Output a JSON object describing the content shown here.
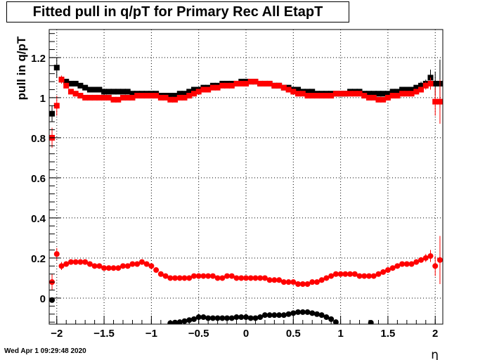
{
  "chart_data": {
    "type": "scatter",
    "title": "Fitted pull in q/pT for Primary Rec All EtapT",
    "xlabel": "η",
    "ylabel": "pull in q/pT",
    "xlim": [
      -2.08,
      2.08
    ],
    "ylim": [
      -0.13,
      1.34
    ],
    "x_ticks": [
      -2,
      -1.5,
      -1,
      -0.5,
      0,
      0.5,
      1,
      1.5,
      2
    ],
    "x_tick_labels": [
      "−2",
      "−1.5",
      "−1",
      "−0.5",
      "0",
      "0.5",
      "1",
      "1.5",
      "2"
    ],
    "y_ticks": [
      0,
      0.2,
      0.4,
      0.6,
      0.8,
      1,
      1.2
    ],
    "y_tick_labels": [
      "0",
      "0.2",
      "0.4",
      "0.6",
      "0.8",
      "1",
      "1.2"
    ],
    "grid": true,
    "series": [
      {
        "marker": "square",
        "color": "#000000",
        "x": [
          -2.05,
          -2.0,
          -1.95,
          -1.9,
          -1.85,
          -1.8,
          -1.75,
          -1.7,
          -1.65,
          -1.6,
          -1.55,
          -1.5,
          -1.45,
          -1.4,
          -1.35,
          -1.3,
          -1.25,
          -1.2,
          -1.15,
          -1.1,
          -1.05,
          -1.0,
          -0.95,
          -0.9,
          -0.85,
          -0.8,
          -0.75,
          -0.7,
          -0.65,
          -0.6,
          -0.55,
          -0.5,
          -0.45,
          -0.4,
          -0.35,
          -0.3,
          -0.25,
          -0.2,
          -0.15,
          -0.1,
          -0.05,
          0.0,
          0.05,
          0.1,
          0.15,
          0.2,
          0.25,
          0.3,
          0.35,
          0.4,
          0.45,
          0.5,
          0.55,
          0.6,
          0.65,
          0.7,
          0.75,
          0.8,
          0.85,
          0.9,
          0.95,
          1.0,
          1.05,
          1.1,
          1.15,
          1.2,
          1.25,
          1.3,
          1.35,
          1.4,
          1.45,
          1.5,
          1.55,
          1.6,
          1.65,
          1.7,
          1.75,
          1.8,
          1.85,
          1.9,
          1.95,
          2.0,
          2.05
        ],
        "y": [
          0.92,
          1.15,
          1.09,
          1.08,
          1.07,
          1.07,
          1.06,
          1.05,
          1.04,
          1.04,
          1.04,
          1.03,
          1.03,
          1.03,
          1.03,
          1.03,
          1.03,
          1.02,
          1.02,
          1.02,
          1.02,
          1.02,
          1.02,
          1.01,
          1.01,
          1.01,
          1.01,
          1.02,
          1.02,
          1.03,
          1.04,
          1.04,
          1.05,
          1.05,
          1.06,
          1.06,
          1.07,
          1.07,
          1.07,
          1.07,
          1.08,
          1.08,
          1.08,
          1.08,
          1.07,
          1.07,
          1.07,
          1.06,
          1.06,
          1.05,
          1.05,
          1.04,
          1.04,
          1.03,
          1.03,
          1.03,
          1.02,
          1.02,
          1.02,
          1.02,
          1.02,
          1.02,
          1.02,
          1.03,
          1.03,
          1.03,
          1.02,
          1.02,
          1.02,
          1.02,
          1.02,
          1.02,
          1.03,
          1.03,
          1.04,
          1.04,
          1.04,
          1.05,
          1.06,
          1.07,
          1.1,
          1.07,
          1.07
        ],
        "yerr": [
          0.04,
          0.05,
          0.02,
          0.01,
          0.01,
          0.01,
          0.01,
          0.01,
          0.01,
          0.01,
          0.01,
          0.01,
          0.01,
          0.01,
          0.01,
          0.01,
          0.01,
          0.01,
          0.01,
          0.01,
          0.01,
          0.01,
          0.01,
          0.01,
          0.01,
          0.01,
          0.01,
          0.01,
          0.01,
          0.01,
          0.01,
          0.01,
          0.01,
          0.01,
          0.01,
          0.01,
          0.01,
          0.01,
          0.01,
          0.01,
          0.01,
          0.01,
          0.01,
          0.01,
          0.01,
          0.01,
          0.01,
          0.01,
          0.01,
          0.01,
          0.01,
          0.01,
          0.01,
          0.01,
          0.01,
          0.01,
          0.01,
          0.01,
          0.01,
          0.01,
          0.01,
          0.01,
          0.01,
          0.01,
          0.01,
          0.01,
          0.01,
          0.01,
          0.01,
          0.01,
          0.01,
          0.01,
          0.01,
          0.01,
          0.01,
          0.01,
          0.01,
          0.01,
          0.02,
          0.02,
          0.04,
          0.06,
          0.12
        ]
      },
      {
        "marker": "square",
        "color": "#ff0000",
        "x": [
          -2.05,
          -2.0,
          -1.95,
          -1.9,
          -1.85,
          -1.8,
          -1.75,
          -1.7,
          -1.65,
          -1.6,
          -1.55,
          -1.5,
          -1.45,
          -1.4,
          -1.35,
          -1.3,
          -1.25,
          -1.2,
          -1.15,
          -1.1,
          -1.05,
          -1.0,
          -0.95,
          -0.9,
          -0.85,
          -0.8,
          -0.75,
          -0.7,
          -0.65,
          -0.6,
          -0.55,
          -0.5,
          -0.45,
          -0.4,
          -0.35,
          -0.3,
          -0.25,
          -0.2,
          -0.15,
          -0.1,
          -0.05,
          0.0,
          0.05,
          0.1,
          0.15,
          0.2,
          0.25,
          0.3,
          0.35,
          0.4,
          0.45,
          0.5,
          0.55,
          0.6,
          0.65,
          0.7,
          0.75,
          0.8,
          0.85,
          0.9,
          0.95,
          1.0,
          1.05,
          1.1,
          1.15,
          1.2,
          1.25,
          1.3,
          1.35,
          1.4,
          1.45,
          1.5,
          1.55,
          1.6,
          1.65,
          1.7,
          1.75,
          1.8,
          1.85,
          1.9,
          1.95,
          2.0,
          2.05
        ],
        "y": [
          0.8,
          0.96,
          1.09,
          1.06,
          1.03,
          1.02,
          1.01,
          1.0,
          1.0,
          1.0,
          1.0,
          1.0,
          1.0,
          0.99,
          0.99,
          1.0,
          1.0,
          1.0,
          1.01,
          1.01,
          1.01,
          1.01,
          1.01,
          1.0,
          1.0,
          0.99,
          0.99,
          1.0,
          1.0,
          1.01,
          1.02,
          1.03,
          1.04,
          1.04,
          1.05,
          1.05,
          1.06,
          1.06,
          1.06,
          1.07,
          1.07,
          1.07,
          1.08,
          1.08,
          1.07,
          1.07,
          1.07,
          1.06,
          1.06,
          1.05,
          1.04,
          1.03,
          1.02,
          1.02,
          1.01,
          1.01,
          1.01,
          1.01,
          1.01,
          1.01,
          1.02,
          1.02,
          1.02,
          1.02,
          1.02,
          1.02,
          1.01,
          1.0,
          1.0,
          0.99,
          0.99,
          1.0,
          1.01,
          1.01,
          1.02,
          1.02,
          1.02,
          1.03,
          1.04,
          1.06,
          1.07,
          0.98,
          0.98
        ],
        "yerr": [
          0.05,
          0.05,
          0.02,
          0.01,
          0.01,
          0.01,
          0.01,
          0.01,
          0.01,
          0.01,
          0.01,
          0.01,
          0.01,
          0.01,
          0.01,
          0.01,
          0.01,
          0.01,
          0.01,
          0.01,
          0.01,
          0.01,
          0.01,
          0.01,
          0.01,
          0.01,
          0.01,
          0.01,
          0.01,
          0.01,
          0.01,
          0.01,
          0.01,
          0.01,
          0.01,
          0.01,
          0.01,
          0.01,
          0.01,
          0.01,
          0.01,
          0.01,
          0.01,
          0.01,
          0.01,
          0.01,
          0.01,
          0.01,
          0.01,
          0.01,
          0.01,
          0.01,
          0.01,
          0.01,
          0.01,
          0.01,
          0.01,
          0.01,
          0.01,
          0.01,
          0.01,
          0.01,
          0.01,
          0.01,
          0.01,
          0.01,
          0.01,
          0.01,
          0.01,
          0.01,
          0.01,
          0.01,
          0.01,
          0.01,
          0.01,
          0.01,
          0.01,
          0.01,
          0.01,
          0.02,
          0.03,
          0.07,
          0.11
        ]
      },
      {
        "marker": "circle",
        "color": "#ff0000",
        "x": [
          -2.05,
          -2.0,
          -1.95,
          -1.9,
          -1.85,
          -1.8,
          -1.75,
          -1.7,
          -1.65,
          -1.6,
          -1.55,
          -1.5,
          -1.45,
          -1.4,
          -1.35,
          -1.3,
          -1.25,
          -1.2,
          -1.15,
          -1.1,
          -1.05,
          -1.0,
          -0.95,
          -0.9,
          -0.85,
          -0.8,
          -0.75,
          -0.7,
          -0.65,
          -0.6,
          -0.55,
          -0.5,
          -0.45,
          -0.4,
          -0.35,
          -0.3,
          -0.25,
          -0.2,
          -0.15,
          -0.1,
          -0.05,
          0.0,
          0.05,
          0.1,
          0.15,
          0.2,
          0.25,
          0.3,
          0.35,
          0.4,
          0.45,
          0.5,
          0.55,
          0.6,
          0.65,
          0.7,
          0.75,
          0.8,
          0.85,
          0.9,
          0.95,
          1.0,
          1.05,
          1.1,
          1.15,
          1.2,
          1.25,
          1.3,
          1.35,
          1.4,
          1.45,
          1.5,
          1.55,
          1.6,
          1.65,
          1.7,
          1.75,
          1.8,
          1.85,
          1.9,
          1.95,
          2.0,
          2.05
        ],
        "y": [
          0.08,
          0.22,
          0.16,
          0.17,
          0.18,
          0.18,
          0.18,
          0.18,
          0.17,
          0.16,
          0.16,
          0.15,
          0.15,
          0.15,
          0.15,
          0.16,
          0.16,
          0.17,
          0.17,
          0.18,
          0.17,
          0.16,
          0.14,
          0.12,
          0.11,
          0.1,
          0.1,
          0.1,
          0.1,
          0.1,
          0.11,
          0.11,
          0.11,
          0.11,
          0.11,
          0.1,
          0.1,
          0.11,
          0.11,
          0.1,
          0.1,
          0.1,
          0.1,
          0.1,
          0.1,
          0.1,
          0.09,
          0.09,
          0.09,
          0.08,
          0.08,
          0.08,
          0.07,
          0.07,
          0.07,
          0.08,
          0.08,
          0.09,
          0.1,
          0.11,
          0.12,
          0.12,
          0.12,
          0.12,
          0.12,
          0.11,
          0.11,
          0.11,
          0.11,
          0.12,
          0.13,
          0.14,
          0.15,
          0.16,
          0.17,
          0.17,
          0.17,
          0.18,
          0.19,
          0.2,
          0.21,
          0.16,
          0.19
        ],
        "yerr": [
          0.04,
          0.03,
          0.02,
          0.01,
          0.01,
          0.01,
          0.01,
          0.01,
          0.01,
          0.01,
          0.01,
          0.01,
          0.01,
          0.01,
          0.01,
          0.01,
          0.01,
          0.01,
          0.01,
          0.01,
          0.01,
          0.01,
          0.01,
          0.01,
          0.01,
          0.01,
          0.01,
          0.01,
          0.01,
          0.01,
          0.01,
          0.01,
          0.01,
          0.01,
          0.01,
          0.01,
          0.01,
          0.01,
          0.01,
          0.01,
          0.01,
          0.01,
          0.01,
          0.01,
          0.01,
          0.01,
          0.01,
          0.01,
          0.01,
          0.01,
          0.01,
          0.01,
          0.01,
          0.01,
          0.01,
          0.01,
          0.01,
          0.01,
          0.01,
          0.01,
          0.01,
          0.01,
          0.01,
          0.01,
          0.01,
          0.01,
          0.01,
          0.01,
          0.01,
          0.01,
          0.01,
          0.01,
          0.01,
          0.01,
          0.01,
          0.01,
          0.01,
          0.01,
          0.01,
          0.02,
          0.03,
          0.05,
          0.12
        ]
      },
      {
        "marker": "circle",
        "color": "#000000",
        "x": [
          -2.05,
          -0.8,
          -0.75,
          -0.7,
          -0.65,
          -0.6,
          -0.55,
          -0.5,
          -0.45,
          -0.4,
          -0.35,
          -0.3,
          -0.25,
          -0.2,
          -0.15,
          -0.1,
          -0.05,
          0.0,
          0.05,
          0.1,
          0.15,
          0.2,
          0.25,
          0.3,
          0.35,
          0.4,
          0.45,
          0.5,
          0.55,
          0.6,
          0.65,
          0.7,
          0.75,
          0.8,
          0.85,
          0.9,
          0.95,
          1.32
        ],
        "y": [
          -0.01,
          -0.125,
          -0.122,
          -0.12,
          -0.115,
          -0.11,
          -0.105,
          -0.095,
          -0.095,
          -0.1,
          -0.1,
          -0.1,
          -0.1,
          -0.1,
          -0.1,
          -0.095,
          -0.095,
          -0.095,
          -0.1,
          -0.1,
          -0.095,
          -0.085,
          -0.085,
          -0.085,
          -0.085,
          -0.085,
          -0.08,
          -0.075,
          -0.07,
          -0.07,
          -0.07,
          -0.075,
          -0.08,
          -0.085,
          -0.095,
          -0.105,
          -0.12,
          -0.123
        ],
        "yerr": []
      }
    ]
  },
  "footer": {
    "timestamp": "Wed Apr  1 09:29:48 2020"
  }
}
